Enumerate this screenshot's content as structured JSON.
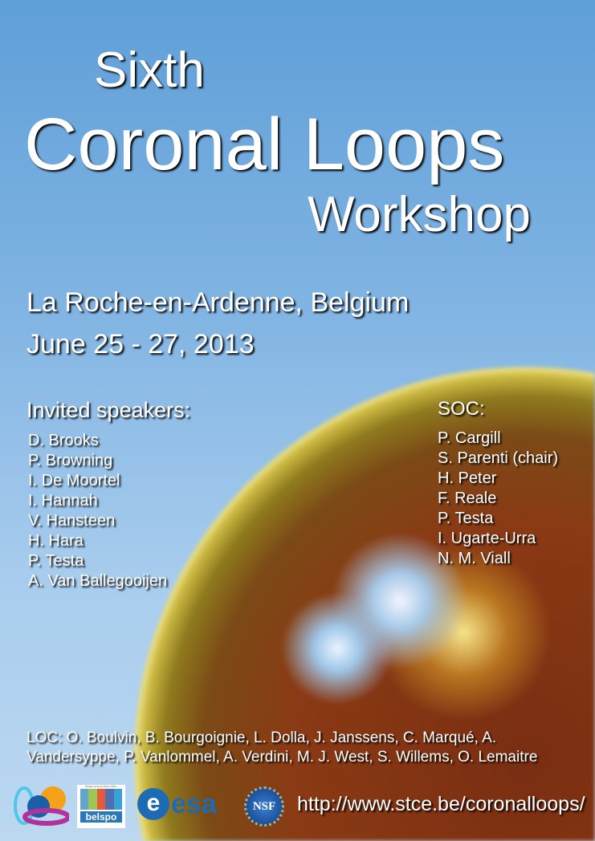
{
  "title": {
    "line1": "Sixth",
    "line2": "Coronal Loops",
    "line3": "Workshop"
  },
  "location": "La Roche-en-Ardenne, Belgium",
  "dates": "June 25 - 27, 2013",
  "invited": {
    "heading": "Invited speakers:",
    "names": [
      "D. Brooks",
      "P. Browning",
      "I. De Moortel",
      "I. Hannah",
      "V. Hansteen",
      "H. Hara",
      "P. Testa",
      "A. Van Ballegooijen"
    ]
  },
  "soc": {
    "heading": "SOC:",
    "names": [
      "P. Cargill",
      "S. Parenti (chair)",
      "H. Peter",
      "F. Reale",
      "P. Testa",
      "I. Ugarte-Urra",
      "N. M. Viall"
    ]
  },
  "loc": {
    "line1": "LOC: O. Boulvin, B. Bourgoignie, L. Dolla, J. Janssens, C. Marqué, A.",
    "line2": "Vandersyppe, P. Vanlommel, A. Verdini, M. J. West, S. Willems, O. Lemaitre"
  },
  "logos": {
    "belspo": "belspo",
    "belspo_small": "Belgian Science Policy Office",
    "esa": "esa",
    "nsf": "NSF"
  },
  "url": "http://www.stce.be/coronalloops/"
}
